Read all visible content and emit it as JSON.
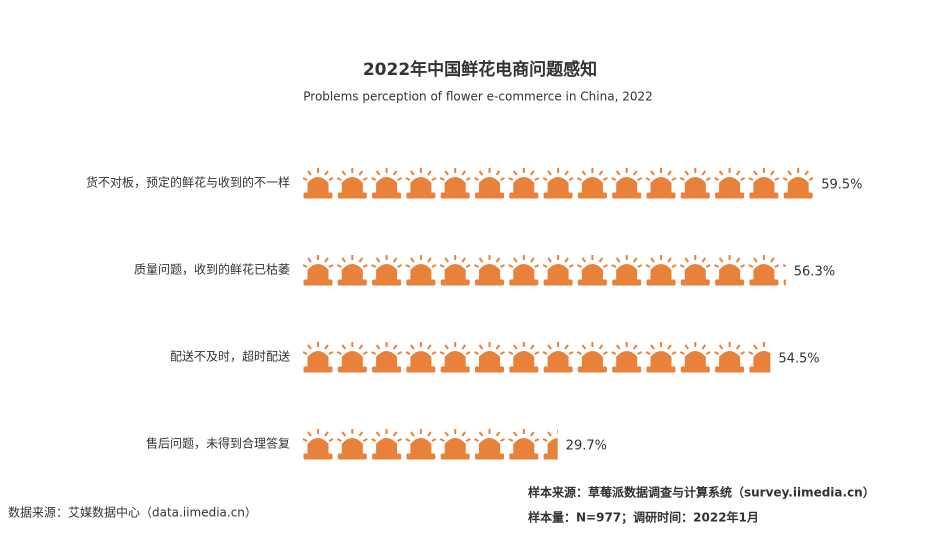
{
  "chart_data": {
    "type": "pictograph",
    "title": "2022年中国鲜花电商问题感知",
    "subtitle": "Problems perception of flower e-commerce in China, 2022",
    "categories": [
      "货不对板，预定的鲜花与收到的不一样",
      "质量问题，收到的鲜花已枯萎",
      "配送不及时，超时配送",
      "售后问题，未得到合理答复"
    ],
    "values": [
      59.5,
      56.3,
      54.5,
      29.7
    ],
    "value_labels": [
      "59.5%",
      "56.3%",
      "54.5%",
      "29.7%"
    ],
    "color": "#e8813a",
    "source": "数据来源：艾媒数据中心（data.iimedia.cn）",
    "sample_source": "样本来源：草莓派数据调查与计算系统（survey.iimedia.cn）",
    "sample_size": "样本量：N=977；调研时间：2022年1月"
  }
}
